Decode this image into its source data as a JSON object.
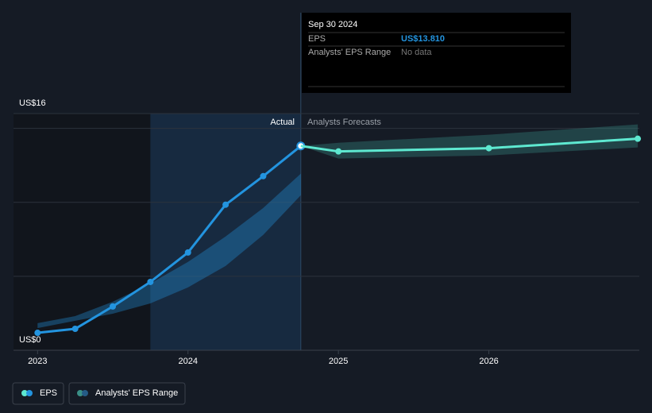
{
  "chart_data": {
    "type": "line",
    "x_type": "year",
    "xlim": [
      2022.84,
      2027.0
    ],
    "xticks": [
      2023,
      2024,
      2025,
      2026
    ],
    "ylim": [
      0,
      16
    ],
    "yticks": [
      {
        "value": 0,
        "label": "US$0"
      },
      {
        "value": 5,
        "label": null
      },
      {
        "value": 10,
        "label": null
      },
      {
        "value": 15,
        "label": null
      },
      {
        "value": 16,
        "label": "US$16"
      }
    ],
    "grid": true,
    "annotations": {
      "actual": "Actual",
      "forecast": "Analysts Forecasts"
    },
    "series": [
      {
        "name": "EPS",
        "color": "#2394df",
        "x": [
          2023.0,
          2023.25,
          2023.5,
          2023.75,
          2024.0,
          2024.25,
          2024.5,
          2024.75
        ],
        "values": [
          1.18,
          1.45,
          2.96,
          4.62,
          6.61,
          9.84,
          11.77,
          13.81
        ]
      },
      {
        "color": "#5ee8d0",
        "x": [
          2025.0,
          2026.0,
          2026.99
        ],
        "values": [
          13.44,
          13.66,
          14.3
        ]
      }
    ],
    "ranges": [
      {
        "name": "Analysts' EPS Range",
        "color": "#2394df",
        "x": [
          2023.0,
          2023.25,
          2023.5,
          2023.75,
          2024.0,
          2024.25,
          2024.5,
          2024.75
        ],
        "low": [
          1.5,
          1.99,
          2.47,
          3.17,
          4.25,
          5.7,
          7.8,
          10.48
        ],
        "high": [
          1.83,
          2.31,
          3.28,
          4.52,
          5.97,
          7.69,
          9.62,
          11.94
        ]
      },
      {
        "color": "#3a8f86",
        "x": [
          2024.75,
          2025.0,
          2026.0,
          2026.99
        ],
        "low": [
          13.81,
          12.96,
          13.17,
          13.71
        ],
        "high": [
          13.81,
          14.03,
          14.57,
          15.27
        ]
      }
    ],
    "tooltip": {
      "date": "Sep 30 2024",
      "eps_label": "EPS",
      "eps_value": "US$13.810",
      "range_label": "Analysts' EPS Range",
      "range_value": "No data"
    }
  }
}
